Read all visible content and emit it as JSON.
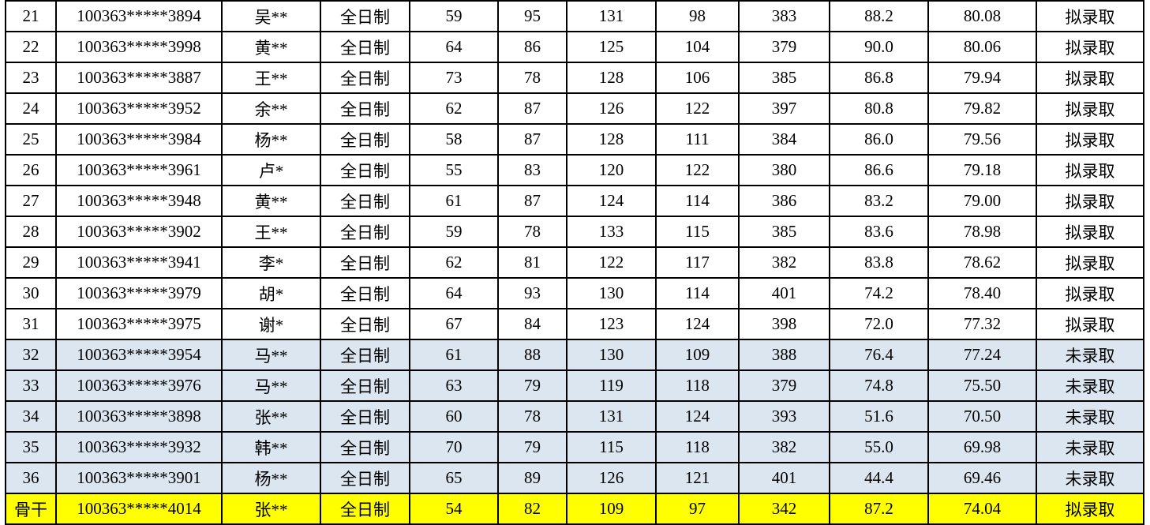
{
  "table": {
    "column_keys": [
      "row-number",
      "candidate-id",
      "candidate-name",
      "study-mode",
      "score-1",
      "score-2",
      "score-3",
      "score-4",
      "total-score",
      "retest-score",
      "final-score",
      "admission-status"
    ],
    "status_labels": {
      "admitted": "拟录取",
      "not_admitted": "未录取"
    },
    "rows": [
      {
        "bg": "white",
        "cells": [
          "21",
          "100363*****3894",
          "吴**",
          "全日制",
          "59",
          "95",
          "131",
          "98",
          "383",
          "88.2",
          "80.08",
          "拟录取"
        ]
      },
      {
        "bg": "white",
        "cells": [
          "22",
          "100363*****3998",
          "黄**",
          "全日制",
          "64",
          "86",
          "125",
          "104",
          "379",
          "90.0",
          "80.06",
          "拟录取"
        ]
      },
      {
        "bg": "white",
        "cells": [
          "23",
          "100363*****3887",
          "王**",
          "全日制",
          "73",
          "78",
          "128",
          "106",
          "385",
          "86.8",
          "79.94",
          "拟录取"
        ]
      },
      {
        "bg": "white",
        "cells": [
          "24",
          "100363*****3952",
          "余**",
          "全日制",
          "62",
          "87",
          "126",
          "122",
          "397",
          "80.8",
          "79.82",
          "拟录取"
        ]
      },
      {
        "bg": "white",
        "cells": [
          "25",
          "100363*****3984",
          "杨**",
          "全日制",
          "58",
          "87",
          "128",
          "111",
          "384",
          "86.0",
          "79.56",
          "拟录取"
        ]
      },
      {
        "bg": "white",
        "cells": [
          "26",
          "100363*****3961",
          "卢*",
          "全日制",
          "55",
          "83",
          "120",
          "122",
          "380",
          "86.6",
          "79.18",
          "拟录取"
        ]
      },
      {
        "bg": "white",
        "cells": [
          "27",
          "100363*****3948",
          "黄**",
          "全日制",
          "61",
          "87",
          "124",
          "114",
          "386",
          "83.2",
          "79.00",
          "拟录取"
        ]
      },
      {
        "bg": "white",
        "cells": [
          "28",
          "100363*****3902",
          "王**",
          "全日制",
          "59",
          "78",
          "133",
          "115",
          "385",
          "83.6",
          "78.98",
          "拟录取"
        ]
      },
      {
        "bg": "white",
        "cells": [
          "29",
          "100363*****3941",
          "李*",
          "全日制",
          "62",
          "81",
          "122",
          "117",
          "382",
          "83.8",
          "78.62",
          "拟录取"
        ]
      },
      {
        "bg": "white",
        "cells": [
          "30",
          "100363*****3979",
          "胡*",
          "全日制",
          "64",
          "93",
          "130",
          "114",
          "401",
          "74.2",
          "78.40",
          "拟录取"
        ]
      },
      {
        "bg": "white",
        "cells": [
          "31",
          "100363*****3975",
          "谢*",
          "全日制",
          "67",
          "84",
          "123",
          "124",
          "398",
          "72.0",
          "77.32",
          "拟录取"
        ]
      },
      {
        "bg": "blue",
        "cells": [
          "32",
          "100363*****3954",
          "马**",
          "全日制",
          "61",
          "88",
          "130",
          "109",
          "388",
          "76.4",
          "77.24",
          "未录取"
        ]
      },
      {
        "bg": "blue",
        "cells": [
          "33",
          "100363*****3976",
          "马**",
          "全日制",
          "63",
          "79",
          "119",
          "118",
          "379",
          "74.8",
          "75.50",
          "未录取"
        ]
      },
      {
        "bg": "blue",
        "cells": [
          "34",
          "100363*****3898",
          "张**",
          "全日制",
          "60",
          "78",
          "131",
          "124",
          "393",
          "51.6",
          "70.50",
          "未录取"
        ]
      },
      {
        "bg": "blue",
        "cells": [
          "35",
          "100363*****3932",
          "韩**",
          "全日制",
          "70",
          "79",
          "115",
          "118",
          "382",
          "55.0",
          "69.98",
          "未录取"
        ]
      },
      {
        "bg": "blue",
        "cells": [
          "36",
          "100363*****3901",
          "杨**",
          "全日制",
          "65",
          "89",
          "126",
          "121",
          "401",
          "44.4",
          "69.46",
          "未录取"
        ]
      },
      {
        "bg": "yellow",
        "cells": [
          "骨干",
          "100363*****4014",
          "张**",
          "全日制",
          "54",
          "82",
          "109",
          "97",
          "342",
          "87.2",
          "74.04",
          "拟录取"
        ]
      }
    ]
  },
  "colors": {
    "row_default": "#ffffff",
    "row_not_admitted": "#dce6f1",
    "row_backbone": "#ffff00",
    "border": "#000000",
    "text": "#000000"
  }
}
